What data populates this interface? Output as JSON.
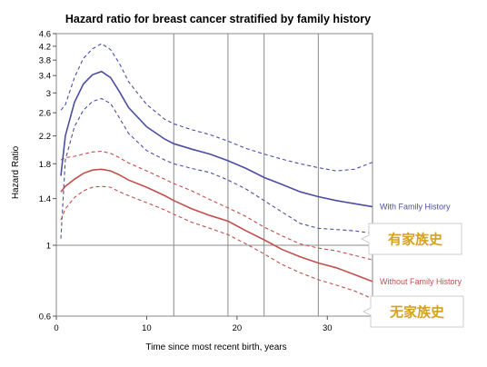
{
  "chart_data": {
    "type": "line",
    "title": "Hazard ratio for breast cancer stratified by family history",
    "xlabel": "Time since most recent birth, years",
    "ylabel": "Hazard Ratio",
    "y_scale": "log",
    "xlim": [
      0,
      35
    ],
    "ylim": [
      0.6,
      4.6
    ],
    "x_ticks": [
      0,
      10,
      20,
      30
    ],
    "y_ticks": [
      0.6,
      1,
      1.4,
      1.8,
      2.2,
      2.6,
      3,
      3.4,
      3.8,
      4.2,
      4.6
    ],
    "vertical_gridlines_x": [
      13,
      19,
      23,
      29
    ],
    "reference_line_y": 1,
    "grid": "vertical",
    "series": [
      {
        "name": "With Family History",
        "color": "#4b4ea3",
        "x": [
          0.5,
          1,
          2,
          3,
          4,
          5,
          6,
          7,
          8,
          10,
          12,
          13,
          15,
          17,
          19,
          21,
          23,
          25,
          27,
          29,
          31,
          33,
          35
        ],
        "values": [
          1.65,
          2.2,
          2.8,
          3.2,
          3.42,
          3.5,
          3.35,
          3.02,
          2.7,
          2.35,
          2.15,
          2.08,
          2.0,
          1.93,
          1.84,
          1.74,
          1.63,
          1.55,
          1.47,
          1.42,
          1.38,
          1.35,
          1.32
        ],
        "ci_lower": [
          1.05,
          1.85,
          2.35,
          2.65,
          2.82,
          2.88,
          2.78,
          2.5,
          2.24,
          1.98,
          1.85,
          1.8,
          1.74,
          1.69,
          1.6,
          1.5,
          1.38,
          1.27,
          1.17,
          1.13,
          1.12,
          1.11,
          1.09
        ],
        "ci_upper": [
          2.65,
          2.75,
          3.35,
          3.85,
          4.12,
          4.28,
          4.1,
          3.7,
          3.25,
          2.76,
          2.48,
          2.4,
          2.3,
          2.22,
          2.12,
          2.01,
          1.93,
          1.86,
          1.8,
          1.75,
          1.71,
          1.73,
          1.82
        ]
      },
      {
        "name": "Without Family History",
        "color": "#c0504d",
        "x": [
          0.5,
          1,
          2,
          3,
          4,
          5,
          6,
          7,
          8,
          10,
          12,
          13,
          15,
          17,
          19,
          21,
          23,
          25,
          27,
          29,
          31,
          33,
          35
        ],
        "values": [
          1.47,
          1.53,
          1.61,
          1.68,
          1.72,
          1.73,
          1.71,
          1.66,
          1.6,
          1.52,
          1.43,
          1.38,
          1.3,
          1.24,
          1.19,
          1.11,
          1.04,
          0.97,
          0.92,
          0.88,
          0.85,
          0.81,
          0.77
        ],
        "ci_lower": [
          1.2,
          1.3,
          1.41,
          1.48,
          1.52,
          1.53,
          1.52,
          1.47,
          1.43,
          1.36,
          1.29,
          1.25,
          1.18,
          1.13,
          1.08,
          1.01,
          0.94,
          0.87,
          0.82,
          0.78,
          0.75,
          0.72,
          0.68
        ],
        "ci_upper": [
          1.85,
          1.88,
          1.9,
          1.93,
          1.96,
          1.97,
          1.94,
          1.88,
          1.81,
          1.71,
          1.61,
          1.56,
          1.48,
          1.39,
          1.31,
          1.23,
          1.14,
          1.07,
          1.01,
          0.98,
          0.96,
          0.93,
          0.9
        ]
      }
    ],
    "annotations": [
      {
        "text": "有家族史",
        "near_series": "With Family History"
      },
      {
        "text": "无家族史",
        "near_series": "Without Family History"
      }
    ]
  }
}
